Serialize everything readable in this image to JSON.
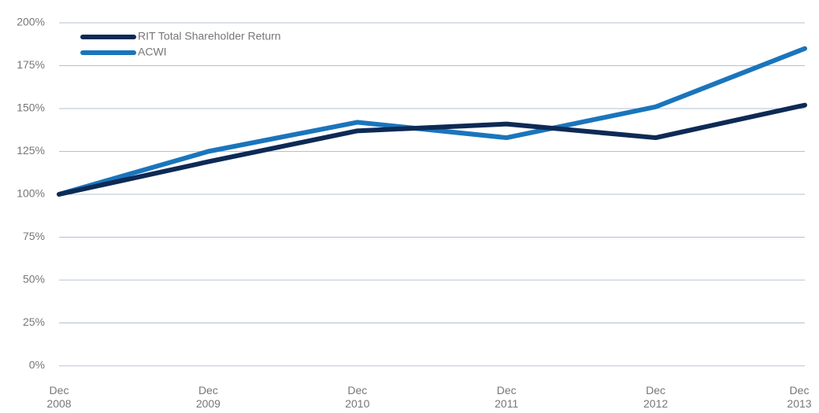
{
  "chart_data": {
    "type": "line",
    "categories": [
      "Dec 2008",
      "Dec 2009",
      "Dec 2010",
      "Dec 2011",
      "Dec 2012",
      "Dec 2013"
    ],
    "series": [
      {
        "name": "RIT Total Shareholder Return",
        "color": "#0d2a55",
        "values": [
          100,
          119,
          137,
          141,
          133,
          152
        ]
      },
      {
        "name": "ACWI",
        "color": "#1a75bc",
        "values": [
          100,
          125,
          142,
          133,
          151,
          185
        ]
      }
    ],
    "ylim": [
      0,
      200
    ],
    "yticks": [
      {
        "value": 0,
        "label": "0%"
      },
      {
        "value": 25,
        "label": "25%"
      },
      {
        "value": 50,
        "label": "50%"
      },
      {
        "value": 75,
        "label": "75%"
      },
      {
        "value": 100,
        "label": "100%"
      },
      {
        "value": 125,
        "label": "125%"
      },
      {
        "value": 150,
        "label": "150%"
      },
      {
        "value": 175,
        "label": "175%"
      },
      {
        "value": 200,
        "label": "200%"
      }
    ],
    "grid": true,
    "legend": "top-left"
  }
}
